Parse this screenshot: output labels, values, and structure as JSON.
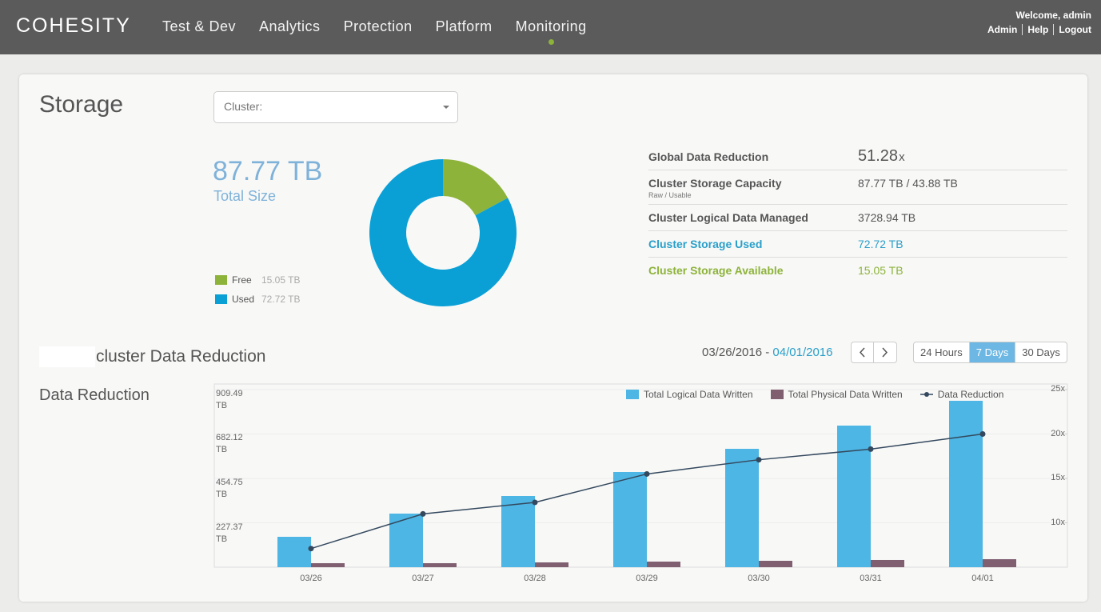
{
  "header": {
    "logo": "COHESITY",
    "nav": [
      "Test & Dev",
      "Analytics",
      "Protection",
      "Platform",
      "Monitoring"
    ],
    "active_nav": 4,
    "welcome": "Welcome, admin",
    "links": [
      "Admin",
      "Help",
      "Logout"
    ]
  },
  "storage": {
    "title": "Storage",
    "cluster_label": "Cluster:",
    "total": "87.77 TB",
    "total_label": "Total Size",
    "stats": [
      {
        "label": "Global Data Reduction",
        "value": "51.28",
        "unit": "x"
      },
      {
        "label": "Cluster Storage Capacity",
        "sublabel": "Raw / Usable",
        "value": "87.77 TB / 43.88 TB"
      },
      {
        "label": "Cluster Logical Data Managed",
        "value": "3728.94 TB"
      },
      {
        "label": "Cluster Storage Used",
        "value": "72.72 TB",
        "color": "#2a9fc9"
      },
      {
        "label": "Cluster Storage Available",
        "value": "15.05 TB",
        "color": "#8db33a"
      }
    ]
  },
  "reduction": {
    "heading": "cluster Data Reduction",
    "date_start": "03/26/2016",
    "date_sep": "-",
    "date_end": "04/01/2016",
    "ranges": [
      "24 Hours",
      "7 Days",
      "30 Days"
    ],
    "active_range": 1
  },
  "chart_data": [
    {
      "type": "pie",
      "hole": 0.5,
      "categories": [
        "Free",
        "Used"
      ],
      "values": [
        15.05,
        72.72
      ],
      "value_labels": [
        "15.05 TB",
        "72.72 TB"
      ],
      "colors": [
        "#8db33a",
        "#0aa0d6"
      ],
      "legend": "bottom-left"
    },
    {
      "type": "bar",
      "title": "Data Reduction",
      "categories": [
        "03/26",
        "03/27",
        "03/28",
        "03/29",
        "03/30",
        "03/31",
        "04/01"
      ],
      "series": [
        {
          "name": "Total Logical Data Written",
          "color": "#4db6e4",
          "values": [
            155.7,
            274.5,
            364.6,
            487.5,
            606.3,
            725.2,
            852.2
          ]
        },
        {
          "name": "Total Physical Data Written",
          "color": "#7f5f70",
          "values": [
            20.5,
            20.5,
            24.6,
            28.7,
            32.8,
            36.9,
            41.0
          ]
        },
        {
          "name": "Data Reduction",
          "type": "line",
          "axis": "y2",
          "color": "#34495e",
          "values": [
            7.1,
            11.0,
            12.3,
            15.5,
            17.1,
            18.3,
            20.0
          ]
        }
      ],
      "ylim": [
        0,
        909.49
      ],
      "yticks": [
        {
          "value": 227.37,
          "label": "227.37 TB"
        },
        {
          "value": 454.75,
          "label": "454.75 TB"
        },
        {
          "value": 682.12,
          "label": "682.12 TB"
        },
        {
          "value": 909.49,
          "label": "909.49 TB"
        }
      ],
      "y2lim": [
        5,
        25
      ],
      "y2ticks": [
        {
          "value": 10,
          "label": "10x"
        },
        {
          "value": 15,
          "label": "15x"
        },
        {
          "value": 20,
          "label": "20x"
        },
        {
          "value": 25,
          "label": "25x"
        }
      ],
      "grid": true,
      "legend": "top-right"
    }
  ]
}
